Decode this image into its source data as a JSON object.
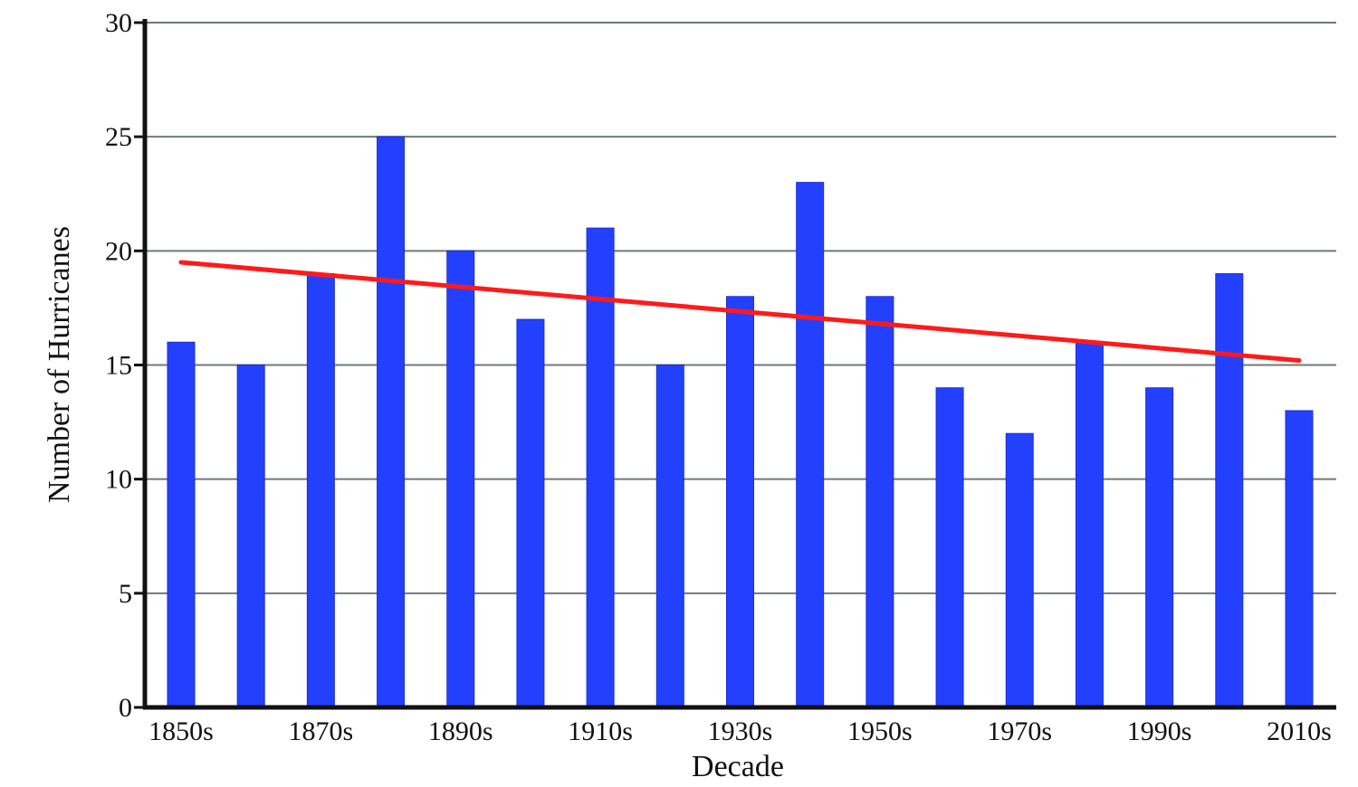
{
  "chart_data": {
    "type": "bar",
    "categories": [
      "1850s",
      "1860s",
      "1870s",
      "1880s",
      "1890s",
      "1900s",
      "1910s",
      "1920s",
      "1930s",
      "1940s",
      "1950s",
      "1960s",
      "1970s",
      "1980s",
      "1990s",
      "2000s",
      "2010s"
    ],
    "x_tick_labels": [
      "1850s",
      "1870s",
      "1890s",
      "1910s",
      "1930s",
      "1950s",
      "1970s",
      "1990s",
      "2010s"
    ],
    "series": [
      {
        "values": [
          16,
          15,
          19,
          25,
          20,
          17,
          21,
          15,
          18,
          23,
          18,
          14,
          12,
          16,
          14,
          19,
          13
        ],
        "color": "#2440ff"
      }
    ],
    "trendline": {
      "start": 19.5,
      "end": 15.2,
      "color": "#ff1a1a"
    },
    "xlabel": "Decade",
    "ylabel": "Number of Hurricanes",
    "ylim": [
      0,
      30
    ],
    "yticks": [
      0,
      5,
      10,
      15,
      20,
      25,
      30
    ],
    "grid": true,
    "legend": "none"
  }
}
